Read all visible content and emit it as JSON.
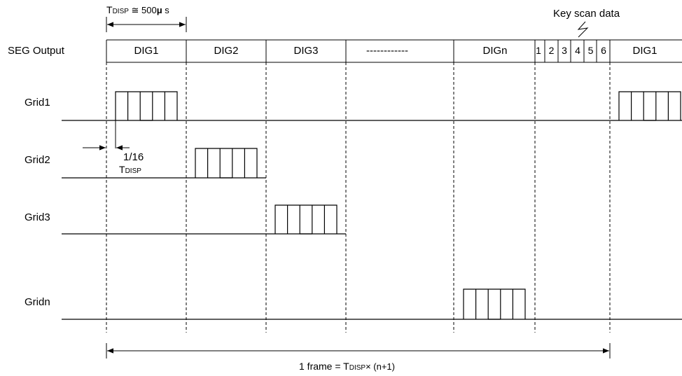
{
  "header": {
    "tdisp_prefix": "T",
    "tdisp_sub": "DISP",
    "tdisp_suffix": " ≅ 500",
    "tdisp_mu": "μ",
    "tdisp_unit": " s",
    "key_scan_label": "Key scan data"
  },
  "seg_row": {
    "label": "SEG Output",
    "cells": [
      "DIG1",
      "DIG2",
      "DIG3",
      "------------",
      "DIGn",
      "DIG1"
    ],
    "key_scan_numbers": [
      "1",
      "2",
      "3",
      "4",
      "5",
      "6"
    ]
  },
  "grids": [
    "Grid1",
    "Grid2",
    "Grid3",
    "Gridn"
  ],
  "pulse_note": {
    "fraction": "1/16",
    "t": "T",
    "sub": "DISP"
  },
  "frame": {
    "prefix": "1 frame = T",
    "sub": "DISP",
    "suffix": "× (n+1)"
  }
}
